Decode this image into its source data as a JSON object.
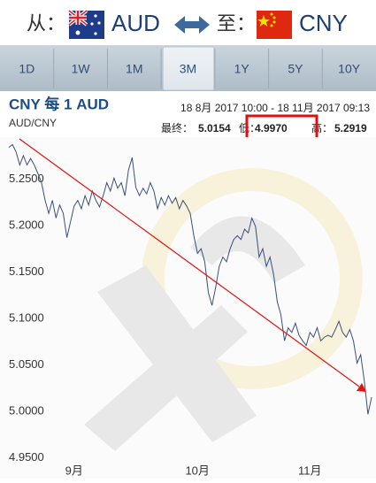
{
  "header": {
    "from_label": "从：",
    "from_currency": "AUD",
    "to_label": "至：",
    "to_currency": "CNY"
  },
  "tabs": [
    "1D",
    "1W",
    "1M",
    "3M",
    "1Y",
    "5Y",
    "10Y"
  ],
  "active_tab": 3,
  "info": {
    "title": "CNY 每 1 AUD",
    "pair": "AUD/CNY",
    "range": "18 8月 2017 10:00 - 18 11月 2017 09:13",
    "last_label": "最终：",
    "last": "5.0154",
    "low_label": "低：",
    "low": "4.9970",
    "high_label": "高：",
    "high": "5.2919"
  },
  "chart_data": {
    "type": "line",
    "categories": [
      null,
      null,
      null,
      null,
      null,
      null,
      null,
      null,
      null,
      null,
      null,
      null,
      null,
      null,
      null,
      null,
      null,
      null,
      "9月",
      null,
      null,
      null,
      null,
      null,
      null,
      null,
      null,
      null,
      null,
      null,
      null,
      null,
      null,
      null,
      null,
      null,
      null,
      null,
      null,
      null,
      null,
      null,
      null,
      null,
      null,
      null,
      null,
      null,
      null,
      null,
      null,
      null,
      "10月",
      null,
      null,
      null,
      null,
      null,
      null,
      null,
      null,
      null,
      null,
      null,
      null,
      null,
      null,
      null,
      null,
      null,
      null,
      null,
      null,
      null,
      null,
      null,
      null,
      null,
      null,
      null,
      null,
      null,
      null,
      "11月",
      null,
      null,
      null,
      null,
      null,
      null,
      null,
      null,
      null,
      null,
      null,
      null,
      null,
      null,
      null,
      null,
      null
    ],
    "values": [
      5.284,
      5.287,
      5.279,
      5.265,
      5.275,
      5.265,
      5.272,
      5.265,
      5.256,
      5.246,
      5.227,
      5.213,
      5.227,
      5.208,
      5.222,
      5.213,
      5.187,
      5.204,
      5.221,
      5.227,
      5.218,
      5.232,
      5.222,
      5.237,
      5.227,
      5.22,
      5.232,
      5.246,
      5.237,
      5.251,
      5.24,
      5.246,
      5.232,
      5.26,
      5.273,
      5.241,
      5.232,
      5.24,
      5.234,
      5.246,
      5.237,
      5.218,
      5.23,
      5.222,
      5.232,
      5.224,
      5.23,
      5.218,
      5.227,
      5.221,
      5.213,
      5.189,
      5.17,
      5.175,
      5.161,
      5.128,
      5.114,
      5.133,
      5.156,
      5.166,
      5.161,
      5.175,
      5.185,
      5.189,
      5.185,
      5.196,
      5.192,
      5.208,
      5.199,
      5.166,
      5.175,
      5.156,
      5.166,
      5.147,
      5.118,
      5.104,
      5.076,
      5.09,
      5.085,
      5.095,
      5.082,
      5.076,
      5.071,
      5.085,
      5.08,
      5.09,
      5.076,
      5.08,
      5.082,
      5.08,
      5.088,
      5.097,
      5.085,
      5.08,
      5.088,
      5.076,
      5.052,
      5.061,
      5.033,
      4.997,
      5.0154
    ],
    "color": "#3a4f7a",
    "ylim": [
      4.945,
      5.295
    ],
    "yticks": [
      {
        "value": 5.25,
        "label": "5.2500"
      },
      {
        "value": 5.2,
        "label": "5.2000"
      },
      {
        "value": 5.15,
        "label": "5.1500"
      },
      {
        "value": 5.1,
        "label": "5.1000"
      },
      {
        "value": 5.05,
        "label": "5.0500"
      },
      {
        "value": 5.0,
        "label": "5.0000"
      },
      {
        "value": 4.95,
        "label": "4.9500"
      }
    ],
    "grid": false
  }
}
